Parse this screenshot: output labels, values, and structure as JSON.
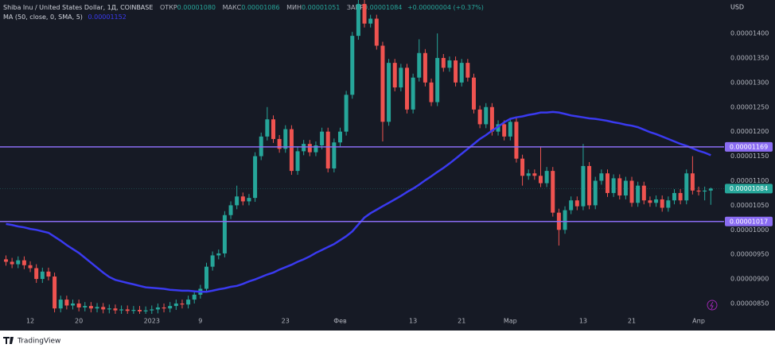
{
  "header": {
    "symbol": "Shiba Inu / United States Dollar, 1Д, COINBASE",
    "open_label": "ОТКР",
    "open": "0.00001080",
    "high_label": "МАКС",
    "high": "0.00001086",
    "low_label": "МИН",
    "low": "0.00001051",
    "close_label": "ЗАКР",
    "close": "0.00001084",
    "change": "+0.00000004 (+0.37%)",
    "ma_label": "MA (50, close, 0, SMA, 5)",
    "ma_value": "0.00001152",
    "currency": "USD"
  },
  "footer": "TradingView",
  "chart_data": {
    "type": "candlestick",
    "up_color": "#26a69a",
    "down_color": "#ef5350",
    "categories": [
      null,
      null,
      null,
      null,
      "12",
      null,
      null,
      null,
      null,
      null,
      null,
      null,
      "20",
      null,
      null,
      null,
      null,
      null,
      null,
      null,
      null,
      null,
      null,
      null,
      "2023",
      null,
      null,
      null,
      null,
      null,
      null,
      null,
      "9",
      null,
      null,
      null,
      null,
      null,
      null,
      null,
      null,
      null,
      null,
      null,
      null,
      null,
      "23",
      null,
      null,
      null,
      null,
      null,
      null,
      null,
      null,
      "Фев",
      null,
      null,
      null,
      null,
      null,
      null,
      null,
      null,
      null,
      null,
      null,
      "13",
      null,
      null,
      null,
      null,
      null,
      null,
      null,
      "21",
      null,
      null,
      null,
      null,
      null,
      null,
      null,
      "Мар",
      null,
      null,
      null,
      null,
      null,
      null,
      null,
      null,
      null,
      null,
      null,
      "13",
      null,
      null,
      null,
      null,
      null,
      null,
      null,
      "21",
      null,
      null,
      null,
      null,
      null,
      null,
      null,
      null,
      null,
      null,
      "Апр",
      null,
      null
    ],
    "open": [
      9.4e-06,
      9.35e-06,
      9.3e-06,
      9.38e-06,
      9.28e-06,
      9.22e-06,
      9e-06,
      9.15e-06,
      9.05e-06,
      8.4e-06,
      8.58e-06,
      8.46e-06,
      8.5e-06,
      8.42e-06,
      8.45e-06,
      8.4e-06,
      8.43e-06,
      8.38e-06,
      8.4e-06,
      8.36e-06,
      8.38e-06,
      8.35e-06,
      8.37e-06,
      8.34e-06,
      8.36e-06,
      8.38e-06,
      8.42e-06,
      8.4e-06,
      8.45e-06,
      8.5e-06,
      8.48e-06,
      8.58e-06,
      8.68e-06,
      8.8e-06,
      9.25e-06,
      9.48e-06,
      9.52e-06,
      1.03e-05,
      1.05e-05,
      1.068e-05,
      1.058e-05,
      1.065e-05,
      1.15e-05,
      1.19e-05,
      1.225e-05,
      1.185e-05,
      1.165e-05,
      1.205e-05,
      1.12e-05,
      1.16e-05,
      1.175e-05,
      1.158e-05,
      1.172e-05,
      1.2e-05,
      1.125e-05,
      1.178e-05,
      1.2e-05,
      1.275e-05,
      1.395e-05,
      1.46e-05,
      1.42e-05,
      1.43e-05,
      1.375e-05,
      1.22e-05,
      1.34e-05,
      1.29e-05,
      1.33e-05,
      1.245e-05,
      1.31e-05,
      1.36e-05,
      1.3e-05,
      1.26e-05,
      1.35e-05,
      1.33e-05,
      1.345e-05,
      1.3e-05,
      1.34e-05,
      1.31e-05,
      1.245e-05,
      1.215e-05,
      1.25e-05,
      1.2e-05,
      1.215e-05,
      1.19e-05,
      1.22e-05,
      1.145e-05,
      1.11e-05,
      1.115e-05,
      1.11e-05,
      1.095e-05,
      1.12e-05,
      1.035e-05,
      1e-05,
      1.04e-05,
      1.06e-05,
      1.048e-05,
      1.13e-05,
      1.05e-05,
      1.1e-05,
      1.115e-05,
      1.075e-05,
      1.105e-05,
      1.07e-05,
      1.1e-05,
      1.055e-05,
      1.09e-05,
      1.06e-05,
      1.055e-05,
      1.062e-05,
      1.045e-05,
      1.06e-05,
      1.075e-05,
      1.06e-05,
      1.115e-05,
      1.08e-05,
      1.078e-05,
      1.08e-05
    ],
    "high": [
      9.48e-06,
      9.43e-06,
      9.46e-06,
      9.46e-06,
      9.36e-06,
      9.3e-06,
      9.23e-06,
      9.23e-06,
      9.13e-06,
      8.66e-06,
      8.66e-06,
      8.58e-06,
      8.58e-06,
      8.53e-06,
      8.53e-06,
      8.51e-06,
      8.51e-06,
      8.48e-06,
      8.48e-06,
      8.46e-06,
      8.46e-06,
      8.45e-06,
      8.45e-06,
      8.44e-06,
      8.46e-06,
      8.5e-06,
      8.5e-06,
      8.53e-06,
      8.58e-06,
      8.58e-06,
      8.66e-06,
      8.76e-06,
      8.88e-06,
      9.33e-06,
      9.56e-06,
      9.6e-06,
      1.038e-05,
      1.058e-05,
      1.09e-05,
      1.076e-05,
      1.073e-05,
      1.158e-05,
      1.198e-05,
      1.25e-05,
      1.233e-05,
      1.193e-05,
      1.213e-05,
      1.213e-05,
      1.168e-05,
      1.183e-05,
      1.183e-05,
      1.18e-05,
      1.208e-05,
      1.208e-05,
      1.186e-05,
      1.208e-05,
      1.283e-05,
      1.403e-05,
      1.48e-05,
      1.468e-05,
      1.438e-05,
      1.438e-05,
      1.383e-05,
      1.348e-05,
      1.348e-05,
      1.338e-05,
      1.338e-05,
      1.318e-05,
      1.388e-05,
      1.368e-05,
      1.308e-05,
      1.4e-05,
      1.358e-05,
      1.353e-05,
      1.353e-05,
      1.348e-05,
      1.348e-05,
      1.318e-05,
      1.253e-05,
      1.258e-05,
      1.258e-05,
      1.223e-05,
      1.223e-05,
      1.228e-05,
      1.228e-05,
      1.153e-05,
      1.123e-05,
      1.123e-05,
      1.17e-05,
      1.128e-05,
      1.128e-05,
      1.043e-05,
      1.048e-05,
      1.068e-05,
      1.068e-05,
      1.175e-05,
      1.138e-05,
      1.108e-05,
      1.123e-05,
      1.123e-05,
      1.113e-05,
      1.113e-05,
      1.108e-05,
      1.108e-05,
      1.098e-05,
      1.098e-05,
      1.068e-05,
      1.07e-05,
      1.07e-05,
      1.068e-05,
      1.083e-05,
      1.083e-05,
      1.123e-05,
      1.15e-05,
      1.088e-05,
      1.088e-05,
      1.086e-05
    ],
    "low": [
      9.27e-06,
      9.22e-06,
      9.22e-06,
      9.2e-06,
      9.14e-06,
      8.92e-06,
      8.92e-06,
      8.97e-06,
      8.32e-06,
      8.32e-06,
      8.38e-06,
      8.38e-06,
      8.34e-06,
      8.34e-06,
      8.32e-06,
      8.32e-06,
      8.3e-06,
      8.3e-06,
      8.28e-06,
      8.28e-06,
      8.27e-06,
      8.27e-06,
      8.26e-06,
      8.26e-06,
      8.28e-06,
      8.3e-06,
      8.32e-06,
      8.32e-06,
      8.37e-06,
      8.4e-06,
      8.4e-06,
      8.5e-06,
      8.6e-06,
      8.72e-06,
      9.17e-06,
      9.4e-06,
      9.44e-06,
      1.022e-05,
      1.042e-05,
      1.05e-05,
      1.05e-05,
      1.057e-05,
      1.142e-05,
      1.182e-05,
      1.177e-05,
      1.157e-05,
      1.157e-05,
      1.112e-05,
      1.112e-05,
      1.152e-05,
      1.15e-05,
      1.15e-05,
      1.164e-05,
      1.117e-05,
      1.117e-05,
      1.17e-05,
      1.192e-05,
      1.267e-05,
      1.387e-05,
      1.412e-05,
      1.412e-05,
      1.367e-05,
      1.18e-05,
      1.212e-05,
      1.282e-05,
      1.282e-05,
      1.237e-05,
      1.237e-05,
      1.302e-05,
      1.292e-05,
      1.252e-05,
      1.252e-05,
      1.322e-05,
      1.322e-05,
      1.292e-05,
      1.292e-05,
      1.302e-05,
      1.237e-05,
      1.207e-05,
      1.207e-05,
      1.192e-05,
      1.192e-05,
      1.182e-05,
      1.182e-05,
      1.137e-05,
      1.09e-05,
      1.102e-05,
      1.102e-05,
      1.087e-05,
      1.087e-05,
      1.027e-05,
      9.68e-06,
      9.92e-06,
      1.032e-05,
      1.04e-05,
      1.04e-05,
      1.042e-05,
      1.042e-05,
      1.092e-05,
      1.067e-05,
      1.067e-05,
      1.062e-05,
      1.062e-05,
      1.047e-05,
      1.047e-05,
      1.052e-05,
      1.047e-05,
      1.047e-05,
      1.037e-05,
      1.037e-05,
      1.052e-05,
      1.052e-05,
      1.052e-05,
      1.072e-05,
      1.07e-05,
      1.06e-05,
      1.051e-05
    ],
    "close": [
      9.35e-06,
      9.3e-06,
      9.38e-06,
      9.28e-06,
      9.22e-06,
      9e-06,
      9.15e-06,
      9.05e-06,
      8.4e-06,
      8.58e-06,
      8.46e-06,
      8.5e-06,
      8.42e-06,
      8.45e-06,
      8.4e-06,
      8.43e-06,
      8.38e-06,
      8.4e-06,
      8.36e-06,
      8.38e-06,
      8.35e-06,
      8.37e-06,
      8.34e-06,
      8.36e-06,
      8.38e-06,
      8.42e-06,
      8.4e-06,
      8.45e-06,
      8.5e-06,
      8.48e-06,
      8.58e-06,
      8.68e-06,
      8.8e-06,
      9.25e-06,
      9.48e-06,
      9.52e-06,
      1.03e-05,
      1.05e-05,
      1.068e-05,
      1.058e-05,
      1.065e-05,
      1.15e-05,
      1.19e-05,
      1.225e-05,
      1.185e-05,
      1.165e-05,
      1.205e-05,
      1.12e-05,
      1.16e-05,
      1.175e-05,
      1.158e-05,
      1.172e-05,
      1.2e-05,
      1.125e-05,
      1.178e-05,
      1.2e-05,
      1.275e-05,
      1.395e-05,
      1.46e-05,
      1.42e-05,
      1.43e-05,
      1.375e-05,
      1.22e-05,
      1.34e-05,
      1.29e-05,
      1.33e-05,
      1.245e-05,
      1.31e-05,
      1.36e-05,
      1.3e-05,
      1.26e-05,
      1.35e-05,
      1.33e-05,
      1.345e-05,
      1.3e-05,
      1.34e-05,
      1.31e-05,
      1.245e-05,
      1.215e-05,
      1.25e-05,
      1.2e-05,
      1.215e-05,
      1.19e-05,
      1.22e-05,
      1.145e-05,
      1.11e-05,
      1.115e-05,
      1.11e-05,
      1.095e-05,
      1.12e-05,
      1.035e-05,
      1e-05,
      1.04e-05,
      1.06e-05,
      1.048e-05,
      1.13e-05,
      1.05e-05,
      1.1e-05,
      1.115e-05,
      1.075e-05,
      1.105e-05,
      1.07e-05,
      1.1e-05,
      1.055e-05,
      1.09e-05,
      1.06e-05,
      1.055e-05,
      1.062e-05,
      1.045e-05,
      1.06e-05,
      1.075e-05,
      1.06e-05,
      1.115e-05,
      1.08e-05,
      1.078e-05,
      1.08e-05,
      1.084e-05
    ],
    "overlays": [
      {
        "type": "line",
        "color": "#3a3af0",
        "values": [
          1.012e-05,
          1.01e-05,
          1.007e-05,
          1.005e-05,
          1.002e-05,
          1e-05,
          9.97e-06,
          9.94e-06,
          9.86e-06,
          9.78e-06,
          9.69e-06,
          9.61e-06,
          9.53e-06,
          9.43e-06,
          9.33e-06,
          9.23e-06,
          9.13e-06,
          9.04e-06,
          8.98e-06,
          8.95e-06,
          8.92e-06,
          8.89e-06,
          8.86e-06,
          8.83e-06,
          8.82e-06,
          8.81e-06,
          8.8e-06,
          8.78e-06,
          8.77e-06,
          8.76e-06,
          8.76e-06,
          8.75e-06,
          8.74e-06,
          8.74e-06,
          8.76e-06,
          8.79e-06,
          8.81e-06,
          8.84e-06,
          8.86e-06,
          8.9e-06,
          8.95e-06,
          8.99e-06,
          9.04e-06,
          9.09e-06,
          9.13e-06,
          9.19e-06,
          9.24e-06,
          9.29e-06,
          9.35e-06,
          9.4e-06,
          9.46e-06,
          9.53e-06,
          9.59e-06,
          9.65e-06,
          9.71e-06,
          9.79e-06,
          9.87e-06,
          9.97e-06,
          1.011e-05,
          1.025e-05,
          1.034e-05,
          1.041e-05,
          1.048e-05,
          1.055e-05,
          1.062e-05,
          1.069e-05,
          1.077e-05,
          1.084e-05,
          1.092e-05,
          1.101e-05,
          1.109e-05,
          1.118e-05,
          1.126e-05,
          1.135e-05,
          1.145e-05,
          1.155e-05,
          1.165e-05,
          1.175e-05,
          1.185e-05,
          1.193e-05,
          1.202e-05,
          1.21e-05,
          1.219e-05,
          1.226e-05,
          1.229e-05,
          1.231e-05,
          1.234e-05,
          1.236e-05,
          1.239e-05,
          1.239e-05,
          1.24e-05,
          1.239e-05,
          1.236e-05,
          1.233e-05,
          1.231e-05,
          1.229e-05,
          1.227e-05,
          1.226e-05,
          1.224e-05,
          1.222e-05,
          1.219e-05,
          1.217e-05,
          1.214e-05,
          1.212e-05,
          1.209e-05,
          1.204e-05,
          1.199e-05,
          1.195e-05,
          1.19e-05,
          1.185e-05,
          1.18e-05,
          1.175e-05,
          1.171e-05,
          1.166e-05,
          1.161e-05,
          1.157e-05,
          1.152e-05
        ]
      }
    ],
    "levels": [
      {
        "value": 1.169e-05,
        "label": "0.00001169"
      },
      {
        "value": 1.017e-05,
        "label": "0.00001017"
      }
    ],
    "level_color": "#8a6cf2",
    "last_price": {
      "value": 1.084e-05,
      "label": "0.00001084"
    },
    "ylim": [
      8.29e-06,
      1.468e-05
    ],
    "yticks": [
      {
        "value": 8.5e-06,
        "label": "0.00000850"
      },
      {
        "value": 9e-06,
        "label": "0.00000900"
      },
      {
        "value": 9.5e-06,
        "label": "0.00000950"
      },
      {
        "value": 1e-05,
        "label": "0.00001000"
      },
      {
        "value": 1.05e-05,
        "label": "0.00001050"
      },
      {
        "value": 1.1e-05,
        "label": "0.00001100"
      },
      {
        "value": 1.15e-05,
        "label": "0.00001150"
      },
      {
        "value": 1.2e-05,
        "label": "0.00001200"
      },
      {
        "value": 1.25e-05,
        "label": "0.00001250"
      },
      {
        "value": 1.3e-05,
        "label": "0.00001300"
      },
      {
        "value": 1.35e-05,
        "label": "0.00001350"
      },
      {
        "value": 1.4e-05,
        "label": "0.00001400"
      }
    ],
    "grid": false
  }
}
